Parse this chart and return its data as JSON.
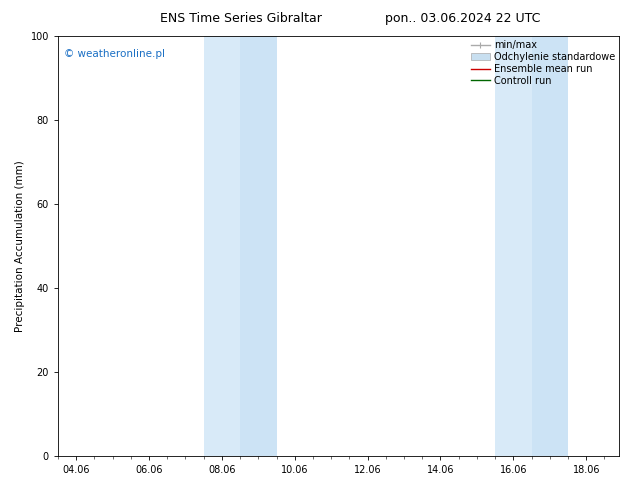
{
  "title_left": "ENS Time Series Gibraltar",
  "title_right": "pon.. 03.06.2024 22 UTC",
  "ylabel": "Precipitation Accumulation (mm)",
  "watermark": "© weatheronline.pl",
  "watermark_color": "#1a6fc4",
  "ylim": [
    0,
    100
  ],
  "yticks": [
    0,
    20,
    40,
    60,
    80,
    100
  ],
  "xtick_labels": [
    "04.06",
    "06.06",
    "08.06",
    "10.06",
    "12.06",
    "14.06",
    "16.06",
    "18.06"
  ],
  "xtick_positions": [
    0,
    2,
    4,
    6,
    8,
    10,
    12,
    14
  ],
  "xmin": -0.5,
  "xmax": 14.9,
  "shading_band1": {
    "xmin": 3.5,
    "xmax": 4.5,
    "color": "#d8eaf8"
  },
  "shading_band2": {
    "xmin": 4.5,
    "xmax": 5.5,
    "color": "#cce3f5"
  },
  "shading_band3": {
    "xmin": 11.5,
    "xmax": 12.5,
    "color": "#d8eaf8"
  },
  "shading_band4": {
    "xmin": 12.5,
    "xmax": 13.5,
    "color": "#cce3f5"
  },
  "legend_labels": [
    "min/max",
    "Odchylenie standardowe",
    "Ensemble mean run",
    "Controll run"
  ],
  "minmax_color": "#aaaaaa",
  "std_color": "#c8dff0",
  "ensemble_color": "#cc0000",
  "control_color": "#006600",
  "background_color": "#ffffff",
  "title_fontsize": 9,
  "tick_fontsize": 7,
  "ylabel_fontsize": 7.5,
  "watermark_fontsize": 7.5,
  "legend_fontsize": 7
}
